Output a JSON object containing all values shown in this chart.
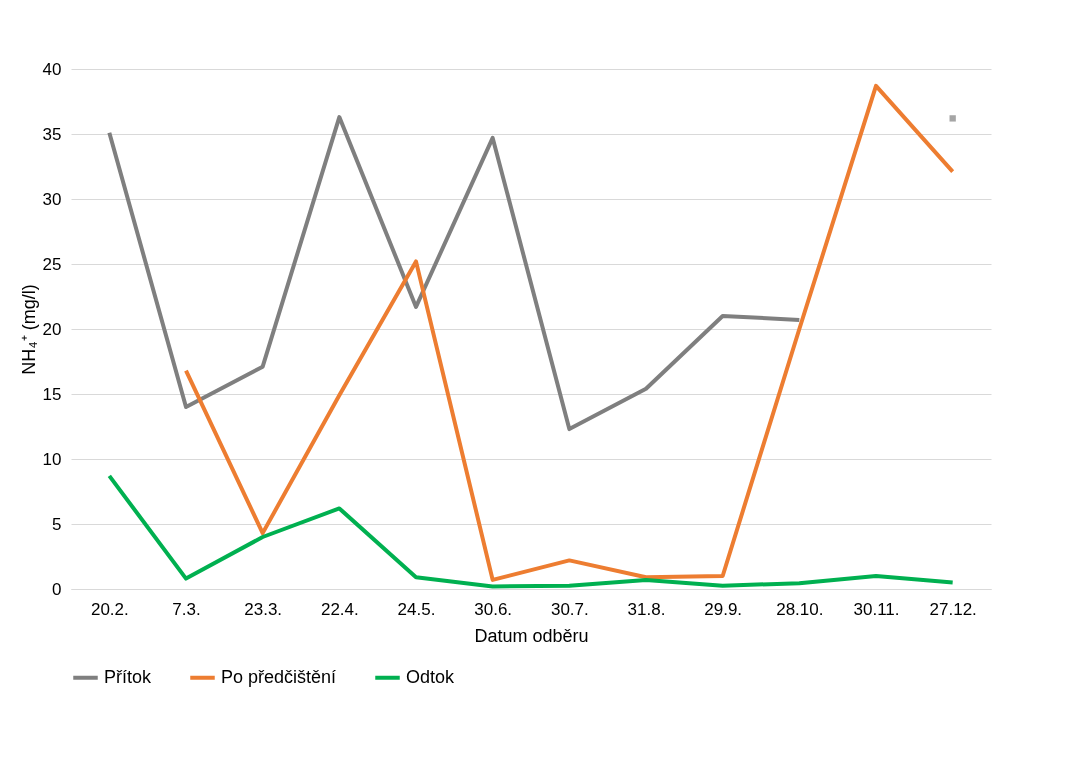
{
  "chart_data": {
    "type": "line",
    "xlabel": "Datum odběru",
    "ylabel": "NH₄⁺ (mg/l)",
    "categories": [
      "20.2.",
      "7.3.",
      "23.3.",
      "22.4.",
      "24.5.",
      "30.6.",
      "30.7.",
      "31.8.",
      "29.9.",
      "28.10.",
      "30.11.",
      "27.12."
    ],
    "series": [
      {
        "name": "Přítok",
        "color": "#7f7f7f",
        "values": [
          35.1,
          14.0,
          17.1,
          36.3,
          21.7,
          34.7,
          12.3,
          15.4,
          21.0,
          20.7,
          null,
          36.2
        ]
      },
      {
        "name": "Po předčištění",
        "color": "#ed7d31",
        "values": [
          null,
          16.8,
          4.3,
          14.9,
          25.2,
          0.7,
          2.2,
          0.9,
          1.0,
          20.0,
          38.7,
          32.1
        ]
      },
      {
        "name": "Odtok",
        "color": "#00b050",
        "values": [
          8.7,
          0.8,
          4.0,
          6.2,
          0.9,
          0.2,
          0.25,
          0.7,
          0.25,
          0.45,
          1.0,
          0.5
        ]
      }
    ],
    "ylim": [
      0,
      40
    ],
    "yticks": [
      0,
      5,
      10,
      15,
      20,
      25,
      30,
      35,
      40
    ],
    "grid": "y",
    "legend": "bottom",
    "marker": "none",
    "line_style": "solid"
  }
}
